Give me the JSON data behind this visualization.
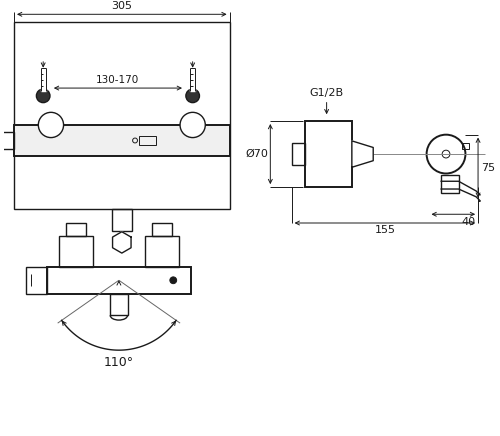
{
  "bg_color": "#ffffff",
  "line_color": "#1a1a1a",
  "fig_width": 5.0,
  "fig_height": 4.36,
  "dpi": 100,
  "front_view": {
    "label_305": "305",
    "label_130_170": "130-170"
  },
  "side_view": {
    "label_G12B": "G1/2B",
    "label_phi70": "Ø70",
    "label_75": "75",
    "label_40": "40",
    "label_155": "155"
  },
  "bottom_view": {
    "label_110": "110°"
  }
}
